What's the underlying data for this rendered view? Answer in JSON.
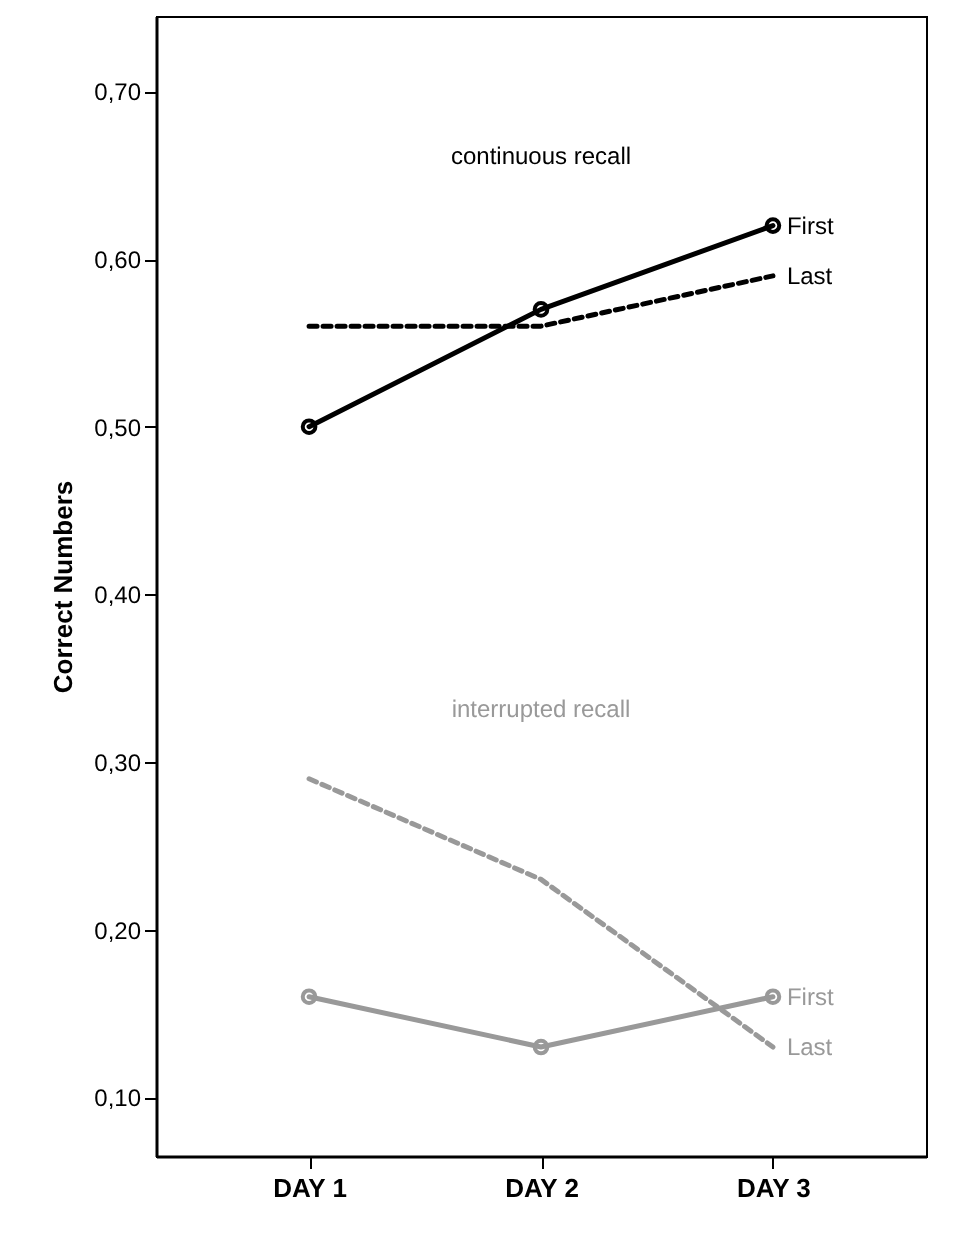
{
  "chart_data": {
    "type": "line",
    "ylabel": "Correct Numbers",
    "categories": [
      "DAY 1",
      "DAY 2",
      "DAY 3"
    ],
    "series": [
      {
        "name": "First",
        "color": "#000000",
        "line_style": "solid",
        "marker": "circle",
        "values": [
          0.5,
          0.57,
          0.62
        ]
      },
      {
        "name": "Last",
        "color": "#000000",
        "line_style": "dashed",
        "marker": "none",
        "values": [
          0.56,
          0.56,
          0.59
        ]
      },
      {
        "name": "First",
        "color": "#999999",
        "line_style": "solid",
        "marker": "circle",
        "values": [
          0.16,
          0.13,
          0.16
        ]
      },
      {
        "name": "Last",
        "color": "#999999",
        "line_style": "dashed",
        "marker": "none",
        "values": [
          0.29,
          0.23,
          0.13
        ]
      }
    ],
    "annotations": [
      "continuous recall",
      "interrupted recall"
    ],
    "ylim": [
      0.065,
      0.745
    ],
    "yticks": [
      {
        "value": 0.1,
        "label": "0,10"
      },
      {
        "value": 0.2,
        "label": "0,20"
      },
      {
        "value": 0.3,
        "label": "0,30"
      },
      {
        "value": 0.4,
        "label": "0,40"
      },
      {
        "value": 0.5,
        "label": "0,50"
      },
      {
        "value": 0.6,
        "label": "0,60"
      },
      {
        "value": 0.7,
        "label": "0,70"
      }
    ],
    "grid": false
  }
}
